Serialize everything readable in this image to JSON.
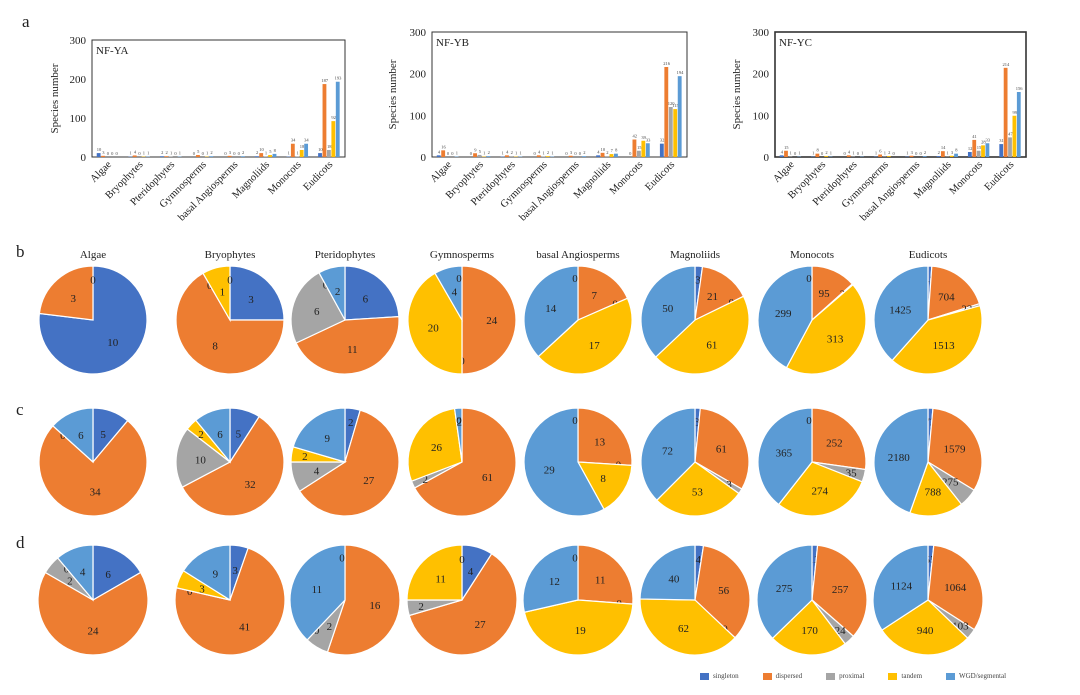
{
  "panel_letters": [
    "a",
    "b",
    "c",
    "d"
  ],
  "legend": [
    {
      "name": "singleton",
      "color": "#4472c4"
    },
    {
      "name": "dispersed",
      "color": "#ed7d31"
    },
    {
      "name": "proximal",
      "color": "#a5a5a5"
    },
    {
      "name": "tandem",
      "color": "#ffc000"
    },
    {
      "name": "WGD/segmental",
      "color": "#5b9bd5"
    }
  ],
  "chart_data": [
    {
      "type": "bar",
      "panel": "a",
      "title": "NF-YA",
      "ylabel": "Species number",
      "xlabel": "",
      "ylim": [
        0,
        300
      ],
      "yticks": [
        0,
        100,
        200,
        300
      ],
      "categories": [
        "Algae",
        "Bryophytes",
        "Pteridophytes",
        "Gymnosperms",
        "basal Angiosperms",
        "Magnoliids",
        "Monocots",
        "Eudicots"
      ],
      "series": [
        {
          "name": "singleton",
          "values": [
            10,
            1,
            2,
            0,
            0,
            2,
            1,
            10
          ]
        },
        {
          "name": "dispersed",
          "values": [
            3,
            4,
            2,
            5,
            3,
            10,
            34,
            187
          ]
        },
        {
          "name": "proximal",
          "values": [
            0,
            0,
            1,
            0,
            0,
            1,
            1,
            18
          ]
        },
        {
          "name": "tandem",
          "values": [
            0,
            1,
            0,
            1,
            0,
            5,
            18,
            92
          ]
        },
        {
          "name": "WGD/segmental",
          "values": [
            0,
            1,
            1,
            2,
            2,
            8,
            34,
            193
          ]
        }
      ]
    },
    {
      "type": "bar",
      "panel": "a",
      "title": "NF-YB",
      "ylabel": "Species number",
      "xlabel": "",
      "ylim": [
        0,
        300
      ],
      "yticks": [
        0,
        100,
        200,
        300
      ],
      "categories": [
        "Algae",
        "Bryophytes",
        "Pteridophytes",
        "Gymnosperms",
        "basal Angiosperms",
        "Magnoliids",
        "Monocots",
        "Eudicots"
      ],
      "series": [
        {
          "name": "singleton",
          "values": [
            4,
            0,
            1,
            0,
            0,
            4,
            0,
            32
          ]
        },
        {
          "name": "dispersed",
          "values": [
            16,
            9,
            4,
            4,
            3,
            10,
            42,
            216
          ]
        },
        {
          "name": "proximal",
          "values": [
            0,
            5,
            2,
            1,
            0,
            2,
            15,
            120
          ]
        },
        {
          "name": "tandem",
          "values": [
            0,
            1,
            1,
            2,
            0,
            7,
            39,
            115
          ]
        },
        {
          "name": "WGD/segmental",
          "values": [
            1,
            2,
            1,
            1,
            2,
            8,
            33,
            194
          ]
        }
      ]
    },
    {
      "type": "bar",
      "panel": "a",
      "title": "NF-YC",
      "ylabel": "Species number",
      "xlabel": "",
      "ylim": [
        0,
        300
      ],
      "yticks": [
        0,
        100,
        200,
        300
      ],
      "categories": [
        "Algae",
        "Bryophytes",
        "Pteridophytes",
        "Gymnosperms",
        "basal Angiosperms",
        "Magnoliids",
        "Monocots",
        "Eudicots"
      ],
      "series": [
        {
          "name": "singleton",
          "values": [
            4,
            1,
            0,
            1,
            1,
            2,
            12,
            31
          ]
        },
        {
          "name": "dispersed",
          "values": [
            15,
            8,
            4,
            6,
            3,
            14,
            41,
            214
          ]
        },
        {
          "name": "proximal",
          "values": [
            1,
            0,
            1,
            1,
            0,
            1,
            15,
            47
          ]
        },
        {
          "name": "tandem",
          "values": [
            0,
            2,
            0,
            2,
            0,
            3,
            28,
            99
          ]
        },
        {
          "name": "WGD/segmental",
          "values": [
            1,
            1,
            1,
            0,
            2,
            8,
            33,
            156
          ]
        }
      ]
    },
    {
      "type": "pie",
      "panel": "b",
      "titles": [
        "Algae",
        "Bryophytes",
        "Pteridophytes",
        "Gymnosperms",
        "basal Angiosperms",
        "Magnoliids",
        "Monocots",
        "Eudicots"
      ],
      "slice_order": [
        "singleton",
        "dispersed",
        "proximal",
        "tandem",
        "WGD/segmental"
      ],
      "pies": [
        {
          "values": [
            10,
            3,
            0,
            0,
            0
          ],
          "labels": [
            "10",
            "3",
            "",
            "",
            "0"
          ]
        },
        {
          "values": [
            3,
            8,
            0,
            1,
            0
          ],
          "labels": [
            "3",
            "8",
            "0",
            "1",
            "0"
          ]
        },
        {
          "values": [
            6,
            11,
            6,
            0,
            2
          ],
          "labels": [
            "6",
            "11",
            "6",
            "0",
            "2"
          ]
        },
        {
          "values": [
            0,
            24,
            0,
            20,
            4
          ],
          "labels": [
            "",
            "24",
            "0",
            "20",
            "4"
          ],
          "extra_labels": [
            "0"
          ]
        },
        {
          "values": [
            0,
            7,
            0,
            17,
            14
          ],
          "labels": [
            "",
            "7",
            "0",
            "17",
            "14"
          ],
          "extra_labels": [
            "0"
          ]
        },
        {
          "values": [
            3,
            21,
            0,
            61,
            50
          ],
          "labels": [
            "3",
            "21",
            "0",
            "61",
            "50"
          ]
        },
        {
          "values": [
            0,
            95,
            2,
            313,
            299
          ],
          "labels": [
            "",
            "95",
            "2",
            "313",
            "299"
          ],
          "extra_labels": [
            "0"
          ]
        },
        {
          "values": [
            42,
            704,
            23,
            1513,
            1425
          ],
          "labels": [
            "42",
            "704",
            "23",
            "1513",
            "1425"
          ]
        }
      ]
    },
    {
      "type": "pie",
      "panel": "c",
      "titles": [],
      "slice_order": [
        "singleton",
        "dispersed",
        "proximal",
        "tandem",
        "WGD/segmental"
      ],
      "pies": [
        {
          "values": [
            5,
            34,
            0,
            0,
            6
          ],
          "labels": [
            "5",
            "34",
            "",
            "0",
            "6"
          ]
        },
        {
          "values": [
            5,
            32,
            10,
            2,
            6
          ],
          "labels": [
            "5",
            "32",
            "10",
            "2",
            "6"
          ]
        },
        {
          "values": [
            2,
            27,
            4,
            2,
            9
          ],
          "labels": [
            "2",
            "27",
            "4",
            "2",
            "9"
          ]
        },
        {
          "values": [
            0,
            61,
            2,
            26,
            2
          ],
          "labels": [
            "",
            "61",
            "2",
            "26",
            "2"
          ],
          "extra_labels": [
            "0"
          ]
        },
        {
          "values": [
            0,
            13,
            0,
            8,
            29
          ],
          "labels": [
            "",
            "13",
            "0",
            "8",
            "29"
          ],
          "extra_labels": [
            "0"
          ]
        },
        {
          "values": [
            3,
            61,
            3,
            53,
            72
          ],
          "labels": [
            "3",
            "61",
            "3",
            "53",
            "72"
          ]
        },
        {
          "values": [
            0,
            252,
            35,
            274,
            365
          ],
          "labels": [
            "",
            "252",
            "35",
            "274",
            "365"
          ],
          "extra_labels": [
            "0"
          ]
        },
        {
          "values": [
            72,
            1579,
            275,
            788,
            2180
          ],
          "labels": [
            "72",
            "1579",
            "275",
            "788",
            "2180"
          ]
        }
      ]
    },
    {
      "type": "pie",
      "panel": "d",
      "titles": [],
      "slice_order": [
        "singleton",
        "dispersed",
        "proximal",
        "tandem",
        "WGD/segmental"
      ],
      "pies": [
        {
          "values": [
            6,
            24,
            2,
            0,
            4
          ],
          "labels": [
            "6",
            "24",
            "2",
            "0",
            "4"
          ]
        },
        {
          "values": [
            3,
            41,
            0,
            3,
            9
          ],
          "labels": [
            "3",
            "41",
            "0",
            "3",
            "9"
          ]
        },
        {
          "values": [
            0,
            16,
            2,
            0,
            11
          ],
          "labels": [
            "",
            "16",
            "2",
            "0",
            "11"
          ],
          "extra_labels": [
            "0"
          ]
        },
        {
          "values": [
            4,
            27,
            2,
            11,
            0
          ],
          "labels": [
            "4",
            "27",
            "2",
            "11",
            "0"
          ]
        },
        {
          "values": [
            0,
            11,
            0,
            19,
            12
          ],
          "labels": [
            "",
            "11",
            "0",
            "19",
            "12"
          ],
          "extra_labels": [
            "0"
          ]
        },
        {
          "values": [
            4,
            56,
            0,
            62,
            40
          ],
          "labels": [
            "4",
            "56",
            "0",
            "62",
            "40"
          ]
        },
        {
          "values": [
            12,
            257,
            24,
            170,
            275
          ],
          "labels": [
            "12",
            "257",
            "24",
            "170",
            "275"
          ]
        },
        {
          "values": [
            55,
            1064,
            103,
            940,
            1124
          ],
          "labels": [
            "55",
            "1064",
            "103",
            "940",
            "1124"
          ]
        }
      ]
    }
  ]
}
